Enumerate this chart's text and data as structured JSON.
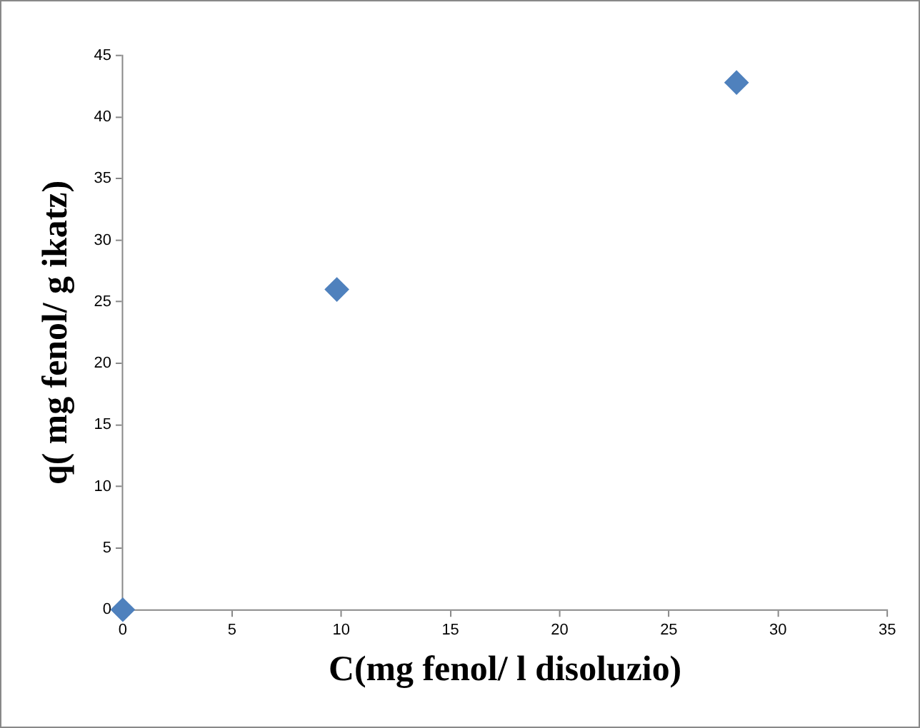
{
  "chart_data": {
    "type": "scatter",
    "xlabel": "C(mg fenol/ l disoluzio)",
    "ylabel": "q( mg fenol/ g ikatz)",
    "x": [
      0,
      9.8,
      28.1
    ],
    "series": [
      {
        "color": "#4f81bd",
        "values": [
          0,
          26,
          42.8
        ]
      }
    ],
    "marker": "diamond",
    "grid": false,
    "legend": false,
    "xlim": [
      0,
      35
    ],
    "xticks": [
      0,
      5,
      10,
      15,
      20,
      25,
      30,
      35
    ],
    "ylim": [
      0,
      45
    ],
    "yticks": [
      0,
      5,
      10,
      15,
      20,
      25,
      30,
      35,
      40,
      45
    ]
  }
}
